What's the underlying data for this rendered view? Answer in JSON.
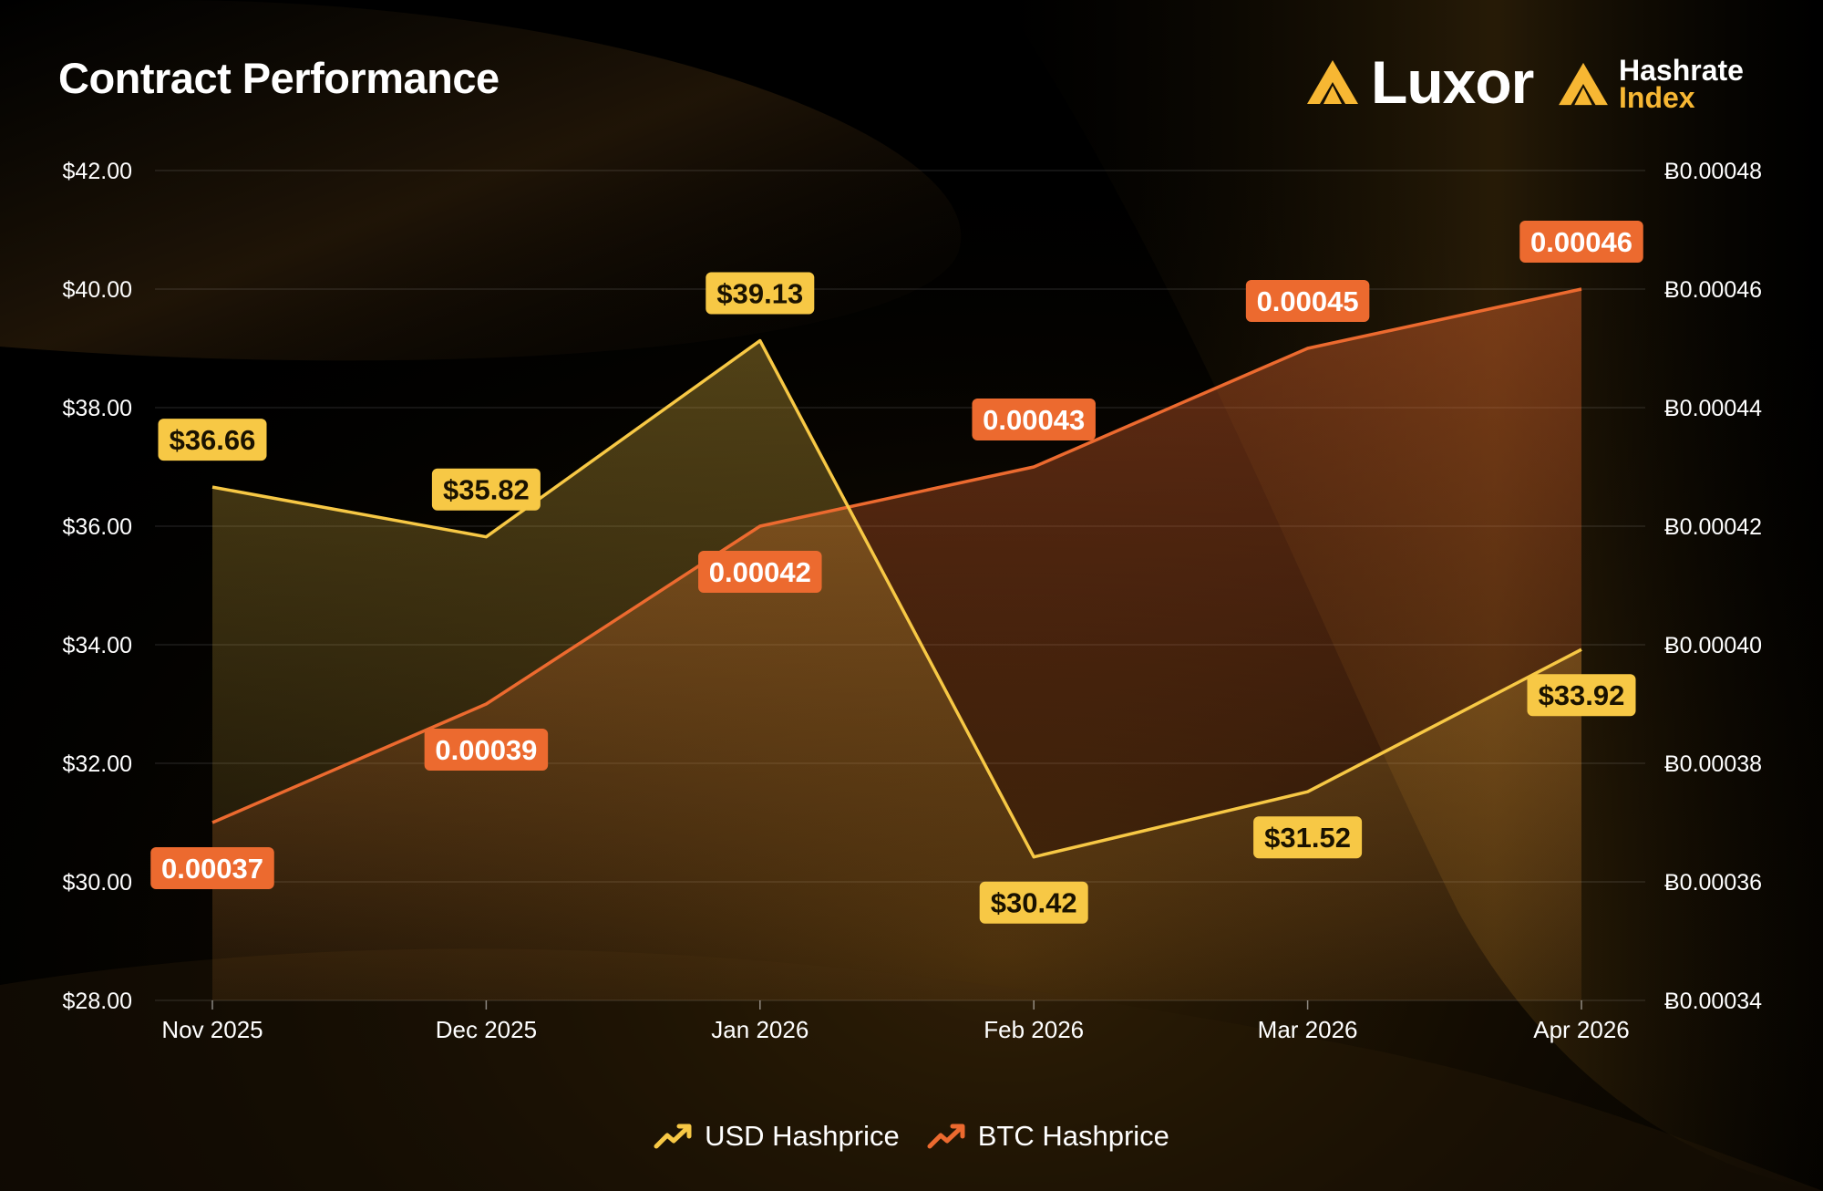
{
  "branding": {
    "luxor": "Luxor",
    "hashrate_line1": "Hashrate",
    "hashrate_line2": "Index"
  },
  "chart_data": {
    "type": "line",
    "title": "Contract Performance",
    "categories": [
      "Nov 2025",
      "Dec 2025",
      "Jan 2026",
      "Feb 2026",
      "Mar 2026",
      "Apr 2026"
    ],
    "y_left": {
      "range": [
        28,
        42
      ],
      "ticks": [
        "$42.00",
        "$40.00",
        "$38.00",
        "$36.00",
        "$34.00",
        "$32.00",
        "$30.00",
        "$28.00"
      ],
      "tick_values": [
        42,
        40,
        38,
        36,
        34,
        32,
        30,
        28
      ]
    },
    "y_right": {
      "range": [
        0.00034,
        0.00048
      ],
      "ticks": [
        "Ƀ0.00048",
        "Ƀ0.00046",
        "Ƀ0.00044",
        "Ƀ0.00042",
        "Ƀ0.00040",
        "Ƀ0.00038",
        "Ƀ0.00036",
        "Ƀ0.00034"
      ],
      "tick_values": [
        0.00048,
        0.00046,
        0.00044,
        0.00042,
        0.0004,
        0.00038,
        0.00036,
        0.00034
      ]
    },
    "series": [
      {
        "name": "USD Hashprice",
        "axis": "left",
        "color": "#f7c845",
        "values": [
          36.66,
          35.82,
          39.13,
          30.42,
          31.52,
          33.92
        ],
        "labels": [
          "$36.66",
          "$35.82",
          "$39.13",
          "$30.42",
          "$31.52",
          "$33.92"
        ]
      },
      {
        "name": "BTC Hashprice",
        "axis": "right",
        "color": "#ec6a2f",
        "values": [
          0.00037,
          0.00039,
          0.00042,
          0.00043,
          0.00045,
          0.00046
        ],
        "labels": [
          "0.00037",
          "0.00039",
          "0.00042",
          "0.00043",
          "0.00045",
          "0.00046"
        ]
      }
    ],
    "grid": true,
    "legend": "bottom-center"
  }
}
